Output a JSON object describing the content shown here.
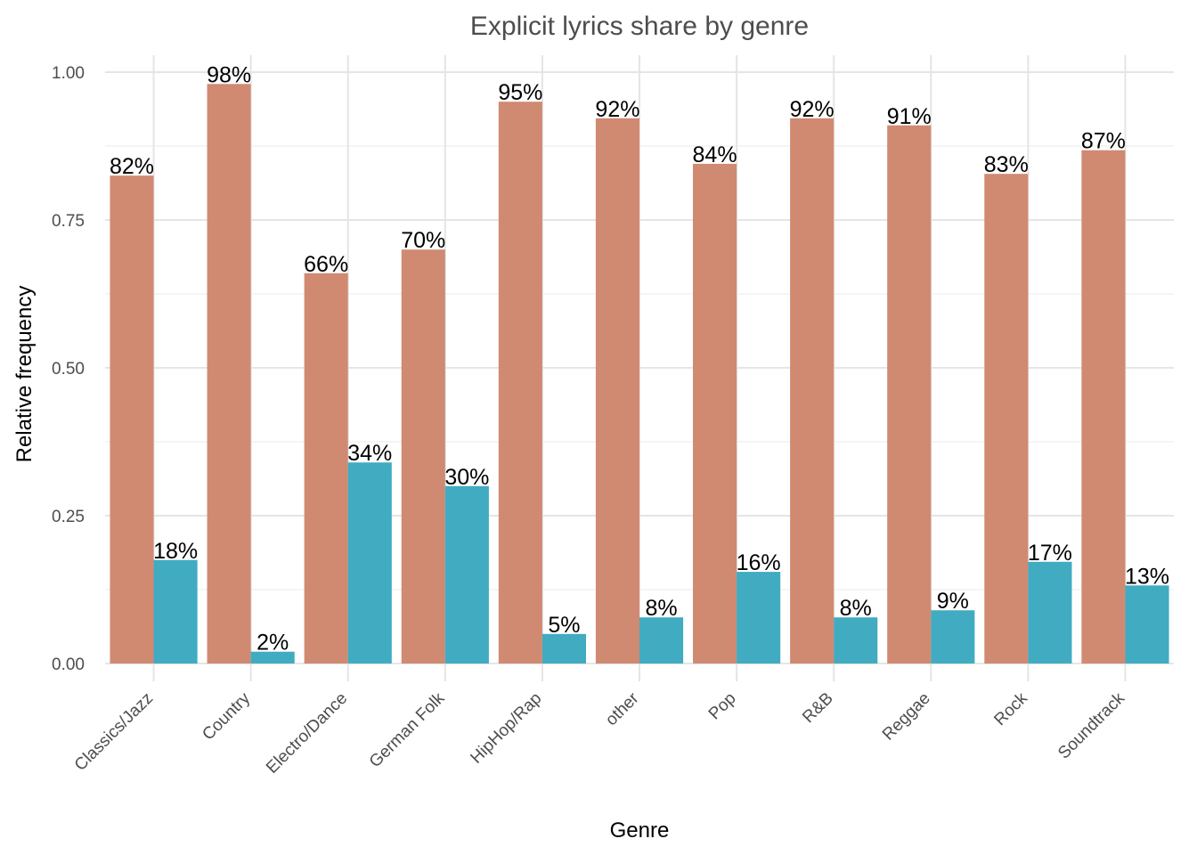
{
  "chart_data": {
    "type": "bar",
    "title": "Explicit lyrics share by genre",
    "xlabel": "Genre",
    "ylabel": "Relative frequency",
    "categories": [
      "Classics/Jazz",
      "Country",
      "Electro/Dance",
      "German Folk",
      "HipHop/Rap",
      "other",
      "Pop",
      "R&B",
      "Reggae",
      "Rock",
      "Soundtrack"
    ],
    "series": [
      {
        "color": "#d08a72",
        "values": [
          0.825,
          0.98,
          0.66,
          0.7,
          0.95,
          0.922,
          0.845,
          0.922,
          0.91,
          0.828,
          0.868
        ],
        "labels": [
          "82%",
          "98%",
          "66%",
          "70%",
          "95%",
          "92%",
          "84%",
          "92%",
          "91%",
          "83%",
          "87%"
        ]
      },
      {
        "color": "#40abc1",
        "values": [
          0.175,
          0.02,
          0.34,
          0.3,
          0.05,
          0.078,
          0.155,
          0.078,
          0.09,
          0.172,
          0.132
        ],
        "labels": [
          "18%",
          "2%",
          "34%",
          "30%",
          "5%",
          "8%",
          "16%",
          "8%",
          "9%",
          "17%",
          "13%"
        ]
      }
    ],
    "ylim": [
      0,
      1.0
    ],
    "yticks": [
      0,
      0.25,
      0.5,
      0.75,
      1.0
    ],
    "ytick_labels": [
      "0.00",
      "0.25",
      "0.50",
      "0.75",
      "1.00"
    ],
    "grid": true,
    "legend": "none"
  }
}
